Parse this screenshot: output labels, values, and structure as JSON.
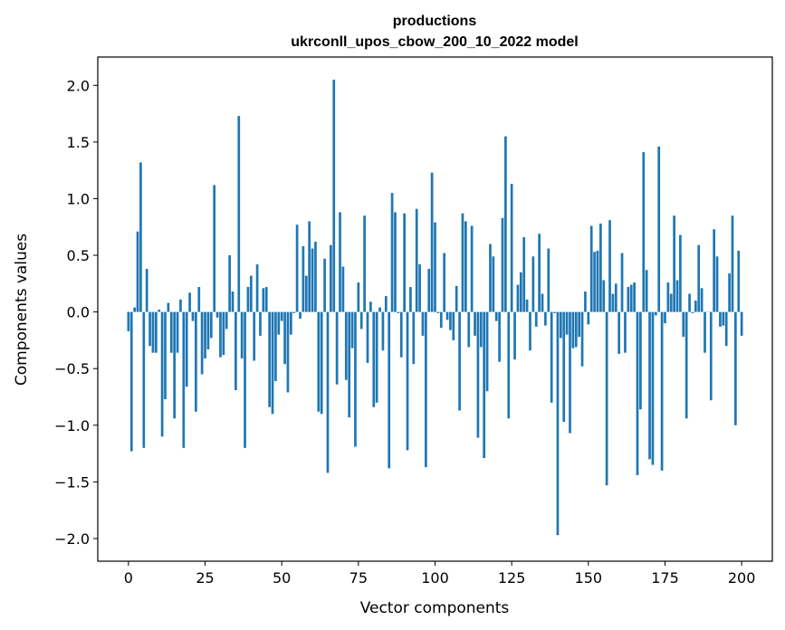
{
  "chart_data": {
    "type": "bar",
    "title": "productions",
    "subtitle": "ukrconll_upos_cbow_200_10_2022 model",
    "xlabel": "Vector components",
    "ylabel": "Components values",
    "xlim": [
      -10,
      210
    ],
    "ylim": [
      -2.2,
      2.25
    ],
    "xticks": [
      0,
      25,
      50,
      75,
      100,
      125,
      150,
      175,
      200
    ],
    "xtick_labels": [
      "0",
      "25",
      "50",
      "75",
      "100",
      "125",
      "150",
      "175",
      "200"
    ],
    "yticks": [
      -2.0,
      -1.5,
      -1.0,
      -0.5,
      0.0,
      0.5,
      1.0,
      1.5,
      2.0
    ],
    "ytick_labels": [
      "−2.0",
      "−1.5",
      "−1.0",
      "−0.5",
      "0.0",
      "0.5",
      "1.0",
      "1.5",
      "2.0"
    ],
    "grid": false,
    "bar_color": "#1f77b4",
    "values": [
      -0.17,
      -1.23,
      0.04,
      0.71,
      1.32,
      -1.2,
      0.38,
      -0.3,
      -0.36,
      -0.36,
      0.02,
      -1.1,
      -0.77,
      0.08,
      -0.36,
      -0.94,
      -0.36,
      0.11,
      -1.2,
      -0.66,
      0.17,
      -0.08,
      -0.88,
      0.22,
      -0.55,
      -0.41,
      -0.33,
      -0.23,
      1.12,
      -0.05,
      -0.4,
      -0.38,
      -0.15,
      0.5,
      0.18,
      -0.69,
      1.73,
      -0.41,
      -1.2,
      0.22,
      0.32,
      -0.43,
      0.42,
      -0.21,
      0.21,
      0.22,
      -0.84,
      -0.9,
      -0.61,
      -0.2,
      -0.08,
      -0.46,
      -0.71,
      -0.2,
      -0.01,
      0.77,
      -0.06,
      0.58,
      0.32,
      0.8,
      0.56,
      0.62,
      -0.88,
      -0.9,
      0.47,
      -1.42,
      0.59,
      2.05,
      -0.64,
      0.88,
      0.4,
      -0.6,
      -0.93,
      -0.32,
      -1.19,
      0.26,
      -0.15,
      0.85,
      -0.45,
      0.09,
      -0.84,
      -0.8,
      0.04,
      -0.34,
      0.14,
      -1.38,
      1.05,
      0.88,
      -0.01,
      -0.4,
      0.87,
      -1.22,
      0.22,
      -0.46,
      0.91,
      0.42,
      -0.21,
      -1.37,
      0.38,
      1.23,
      0.79,
      -0.01,
      -0.14,
      0.52,
      -0.07,
      -0.16,
      -0.25,
      0.23,
      -0.87,
      0.87,
      0.8,
      -0.31,
      0.76,
      -0.21,
      -1.11,
      -0.31,
      -1.29,
      -0.7,
      0.6,
      0.49,
      -0.08,
      -0.44,
      0.83,
      1.55,
      -0.94,
      1.13,
      -0.42,
      0.24,
      0.35,
      0.66,
      0.11,
      -0.34,
      0.49,
      -0.13,
      0.69,
      0.16,
      -0.12,
      0.56,
      -0.8,
      -0.01,
      -1.97,
      -0.23,
      -0.97,
      -0.2,
      -1.07,
      -0.32,
      -0.31,
      -0.22,
      -0.48,
      0.18,
      -0.11,
      0.76,
      0.53,
      0.54,
      0.78,
      0.28,
      -1.53,
      0.81,
      0.16,
      0.25,
      -0.37,
      0.52,
      -0.36,
      0.22,
      0.24,
      0.26,
      -1.44,
      -0.86,
      1.41,
      0.37,
      -1.3,
      -1.35,
      -0.03,
      1.46,
      -1.4,
      -0.1,
      0.26,
      0.16,
      0.85,
      0.28,
      0.68,
      -0.22,
      -0.94,
      0.16,
      -0.01,
      0.1,
      0.59,
      0.21,
      -0.36,
      0.0,
      -0.78,
      0.73,
      0.49,
      -0.13,
      -0.12,
      -0.3,
      0.34,
      0.85,
      -1.0,
      0.54,
      -0.21
    ]
  }
}
